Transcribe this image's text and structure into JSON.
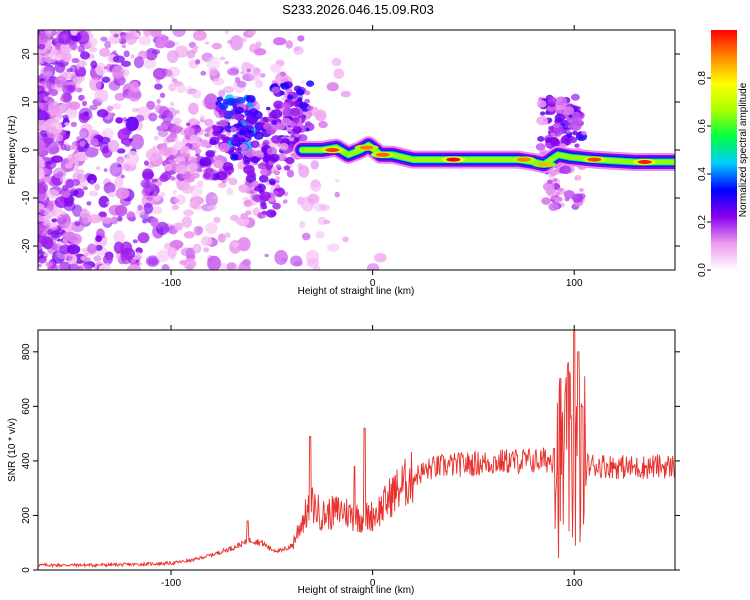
{
  "title": "S233.2026.046.15.09.R03",
  "chart_data": [
    {
      "type": "heatmap",
      "name": "spectrogram",
      "xlabel": "Height of straight line (km)",
      "ylabel": "Frequency (Hz)",
      "xlim": [
        -166,
        150
      ],
      "ylim": [
        -25,
        25
      ],
      "xticks": [
        -100,
        0,
        100
      ],
      "yticks": [
        -20,
        -10,
        0,
        10,
        20
      ],
      "colorbar": {
        "label": "Normalized spectral amplitude",
        "range": [
          0,
          1
        ],
        "ticks": [
          0.0,
          0.2,
          0.4,
          0.6,
          0.8
        ],
        "tick_labels": [
          "0.0",
          "0.2",
          "0.4",
          "0.6",
          "0.8"
        ],
        "stops": [
          "#ffffff",
          "#ee99ee",
          "#8800ee",
          "#0000ff",
          "#00ccff",
          "#00ff44",
          "#aaff00",
          "#ffff00",
          "#ff8800",
          "#ff0000"
        ]
      },
      "ridge_points": [
        [
          -35,
          0
        ],
        [
          -25,
          0
        ],
        [
          -18,
          0.5
        ],
        [
          -12,
          -1
        ],
        [
          -6,
          0
        ],
        [
          -2,
          1
        ],
        [
          4,
          -1
        ],
        [
          10,
          -1
        ],
        [
          20,
          -2
        ],
        [
          40,
          -2
        ],
        [
          60,
          -2
        ],
        [
          72,
          -2
        ],
        [
          80,
          -2.5
        ],
        [
          85,
          -3
        ],
        [
          92,
          -1
        ],
        [
          98,
          -1.5
        ],
        [
          110,
          -2
        ],
        [
          130,
          -2.5
        ],
        [
          150,
          -2.5
        ]
      ],
      "hotspots": [
        {
          "x": -20,
          "y": 0,
          "value": 0.95
        },
        {
          "x": -3,
          "y": 0.5,
          "value": 0.9
        },
        {
          "x": 5,
          "y": -1,
          "value": 0.92
        },
        {
          "x": 40,
          "y": -2,
          "value": 1.0
        },
        {
          "x": 75,
          "y": -2,
          "value": 0.9
        },
        {
          "x": 85,
          "y": -3,
          "value": 0.85
        },
        {
          "x": 110,
          "y": -2,
          "value": 0.95
        },
        {
          "x": 135,
          "y": -2.5,
          "value": 0.98
        }
      ],
      "cluster_blobs": [
        {
          "x": -68,
          "y": 5,
          "value": 0.35
        },
        {
          "x": -60,
          "y": 3,
          "value": 0.25
        },
        {
          "x": -80,
          "y": 0,
          "value": 0.2
        },
        {
          "x": -55,
          "y": -8,
          "value": 0.2
        },
        {
          "x": -40,
          "y": 8,
          "value": 0.25
        },
        {
          "x": -45,
          "y": 2,
          "value": 0.2
        },
        {
          "x": -95,
          "y": 0,
          "value": 0.15
        },
        {
          "x": 96,
          "y": 3,
          "value": 0.25
        },
        {
          "x": 92,
          "y": 5,
          "value": 0.2
        },
        {
          "x": 95,
          "y": -6,
          "value": 0.15
        }
      ]
    },
    {
      "type": "line",
      "name": "snr",
      "xlabel": "Height of straight line (km)",
      "ylabel": "SNR (10 * v/v)",
      "xlim": [
        -166,
        150
      ],
      "ylim": [
        0,
        880
      ],
      "xticks": [
        -100,
        0,
        100
      ],
      "yticks": [
        0,
        200,
        400,
        600,
        800
      ],
      "line_color": "#e8322e",
      "envelope": [
        [
          -166,
          18
        ],
        [
          -140,
          18
        ],
        [
          -120,
          20
        ],
        [
          -100,
          25
        ],
        [
          -90,
          35
        ],
        [
          -80,
          55
        ],
        [
          -70,
          80
        ],
        [
          -60,
          110
        ],
        [
          -55,
          100
        ],
        [
          -50,
          75
        ],
        [
          -45,
          70
        ],
        [
          -40,
          90
        ],
        [
          -35,
          180
        ],
        [
          -30,
          240
        ],
        [
          -25,
          200
        ],
        [
          -20,
          210
        ],
        [
          -15,
          220
        ],
        [
          -10,
          200
        ],
        [
          -5,
          190
        ],
        [
          0,
          200
        ],
        [
          5,
          230
        ],
        [
          10,
          280
        ],
        [
          15,
          310
        ],
        [
          20,
          340
        ],
        [
          25,
          360
        ],
        [
          30,
          375
        ],
        [
          40,
          385
        ],
        [
          50,
          390
        ],
        [
          60,
          395
        ],
        [
          70,
          400
        ],
        [
          80,
          400
        ],
        [
          90,
          405
        ],
        [
          100,
          380
        ],
        [
          110,
          385
        ],
        [
          120,
          380
        ],
        [
          130,
          375
        ],
        [
          140,
          380
        ],
        [
          150,
          380
        ]
      ],
      "spikes": [
        {
          "x": -62,
          "value": 180
        },
        {
          "x": -31,
          "value": 490
        },
        {
          "x": -4,
          "value": 520
        },
        {
          "x": -9,
          "value": 380
        },
        {
          "x": 90,
          "value": 445
        },
        {
          "x": 97,
          "value": 760
        },
        {
          "x": 100,
          "value": 880
        },
        {
          "x": 102,
          "value": 800
        },
        {
          "x": 104,
          "value": 600
        }
      ]
    }
  ]
}
